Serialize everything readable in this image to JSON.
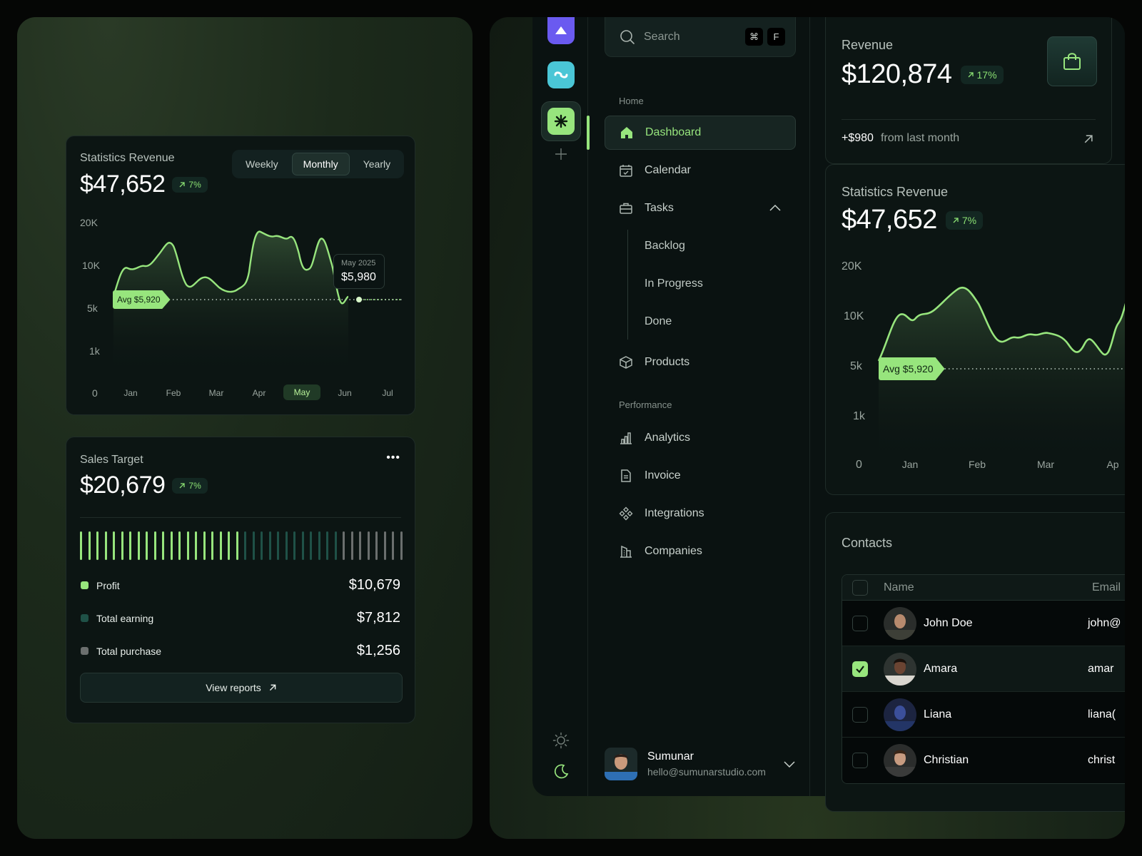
{
  "left": {
    "stats": {
      "title": "Statistics Revenue",
      "value": "$47,652",
      "badge": "7%",
      "tabs": [
        "Weekly",
        "Monthly",
        "Yearly"
      ],
      "active_tab": "Monthly",
      "y_ticks": [
        "20K",
        "10K",
        "5k",
        "1k",
        "0"
      ],
      "x_ticks": [
        "Jan",
        "Feb",
        "Mar",
        "Apr",
        "May",
        "Jun",
        "Jul"
      ],
      "selected_month": "May",
      "avg_label": "Avg $5,920",
      "tooltip_date": "May 2025",
      "tooltip_value": "$5,980"
    },
    "sales": {
      "title": "Sales Target",
      "value": "$20,679",
      "badge": "7%",
      "more_label": "•••",
      "bars": {
        "total": 40,
        "profit": 20,
        "earning": 12,
        "purchase": 8
      },
      "legend": [
        {
          "name": "Profit",
          "value": "$10,679",
          "color": "#97e57d"
        },
        {
          "name": "Total earning",
          "value": "$7,812",
          "color": "#1f5147"
        },
        {
          "name": "Total purchase",
          "value": "$1,256",
          "color": "#6b6f6e"
        }
      ],
      "button": "View reports"
    }
  },
  "sidebar": {
    "search_placeholder": "Search",
    "kbd": [
      "⌘",
      "F"
    ],
    "home_label": "Home",
    "performance_label": "Performance",
    "items": [
      {
        "label": "Dashboard",
        "icon": "home-icon"
      },
      {
        "label": "Calendar",
        "icon": "calendar-icon"
      },
      {
        "label": "Tasks",
        "icon": "briefcase-icon"
      },
      {
        "label": "Products",
        "icon": "box-icon"
      },
      {
        "label": "Analytics",
        "icon": "bar-chart-icon"
      },
      {
        "label": "Invoice",
        "icon": "document-icon"
      },
      {
        "label": "Integrations",
        "icon": "integrations-icon"
      },
      {
        "label": "Companies",
        "icon": "building-icon"
      }
    ],
    "subitems": [
      "Backlog",
      "In Progress",
      "Done"
    ],
    "user": {
      "name": "Sumunar",
      "email": "hello@sumunarstudio.com"
    }
  },
  "revenue": {
    "title": "Revenue",
    "value": "$120,874",
    "badge": "17%",
    "delta": "+$980",
    "delta_text": "from last month"
  },
  "stats2": {
    "title": "Statistics Revenue",
    "value": "$47,652",
    "badge": "7%",
    "y_ticks": [
      "20K",
      "10K",
      "5k",
      "1k",
      "0"
    ],
    "x_ticks": [
      "Jan",
      "Feb",
      "Mar",
      "Ap"
    ],
    "avg_label": "Avg $5,920"
  },
  "contacts": {
    "title": "Contacts",
    "col_name": "Name",
    "col_email": "Email",
    "rows": [
      {
        "name": "John Doe",
        "email": "john@",
        "checked": false
      },
      {
        "name": "Amara",
        "email": "amar",
        "checked": true
      },
      {
        "name": "Liana",
        "email": "liana(",
        "checked": false
      },
      {
        "name": "Christian",
        "email": "christ",
        "checked": false
      }
    ]
  },
  "colors": {
    "accent": "#97e57d",
    "bg": "#0a1211"
  }
}
